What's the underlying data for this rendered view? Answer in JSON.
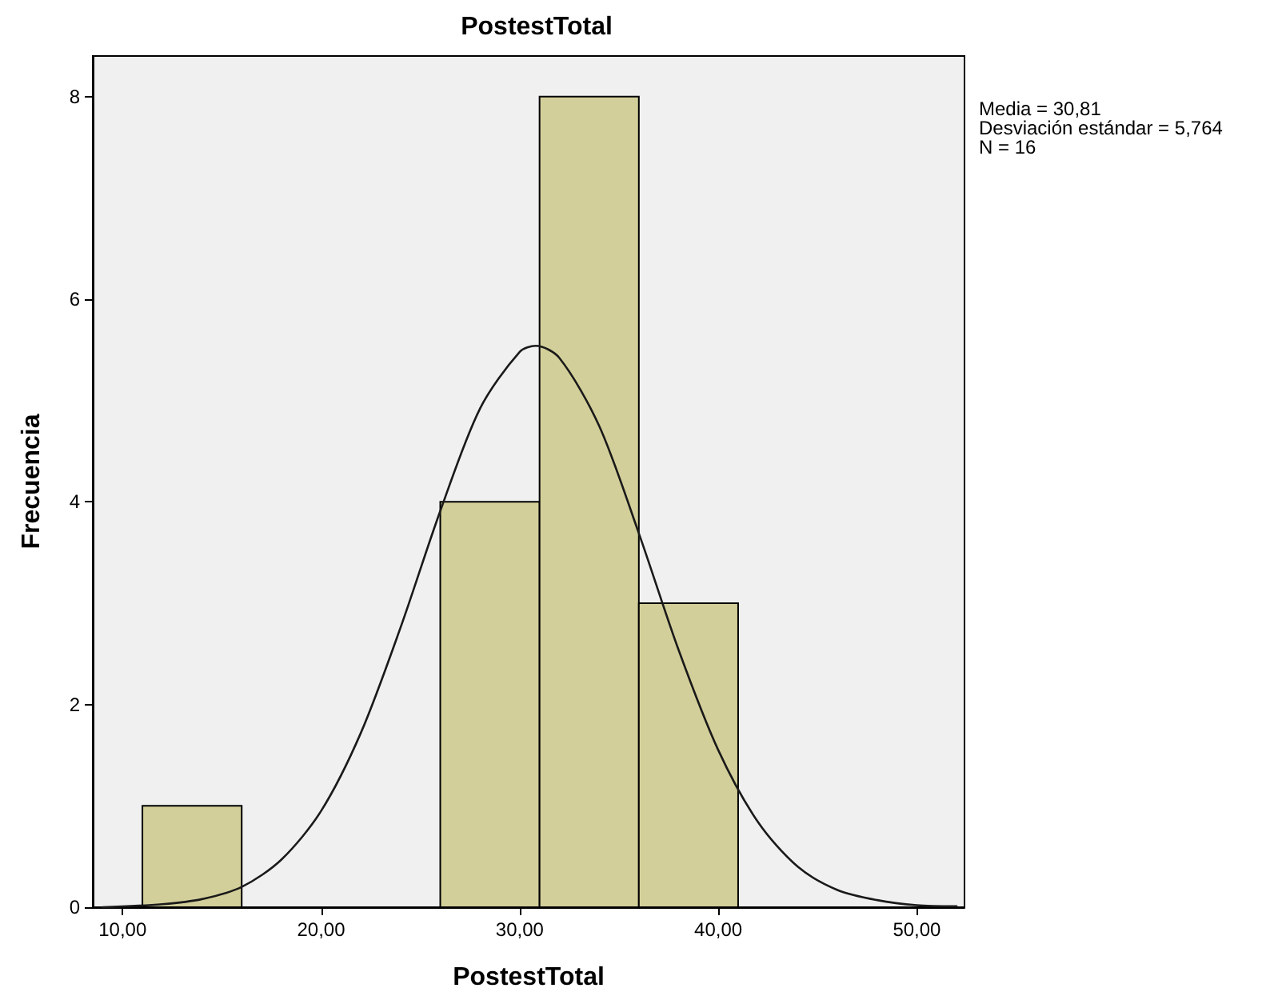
{
  "chart_data": {
    "type": "histogram",
    "title": "PostestTotal",
    "xlabel": "PostestTotal",
    "ylabel": "Frecuencia",
    "xlim": [
      8.5,
      52.4
    ],
    "ylim": [
      0,
      8.4
    ],
    "xticks": [
      {
        "value": 10,
        "label": "10,00"
      },
      {
        "value": 20,
        "label": "20,00"
      },
      {
        "value": 30,
        "label": "30,00"
      },
      {
        "value": 40,
        "label": "40,00"
      },
      {
        "value": 50,
        "label": "50,00"
      }
    ],
    "yticks": [
      0,
      2,
      4,
      6,
      8
    ],
    "grid": false,
    "annotations": [
      "Media = 30,81",
      "Desviación estándar = 5,764",
      "N = 16"
    ],
    "series": [
      {
        "color": "#d3cf9a",
        "bins": [
          11,
          16,
          21,
          26,
          31,
          36,
          41
        ],
        "values": [
          1,
          0,
          0,
          4,
          8,
          3
        ]
      },
      {
        "type": "line",
        "color": "#1a1a1a",
        "marker": "none",
        "line_style": "solid",
        "x": [
          9,
          12,
          14,
          16,
          18,
          20,
          22,
          24,
          26,
          28,
          30,
          30.81,
          32,
          34,
          36,
          38,
          40,
          42,
          44,
          46,
          48,
          50,
          52
        ],
        "values": [
          0,
          0.03,
          0.08,
          0.2,
          0.47,
          0.95,
          1.72,
          2.76,
          3.91,
          4.92,
          5.48,
          5.54,
          5.42,
          4.75,
          3.69,
          2.54,
          1.55,
          0.84,
          0.4,
          0.17,
          0.07,
          0.02,
          0.01
        ]
      }
    ]
  }
}
